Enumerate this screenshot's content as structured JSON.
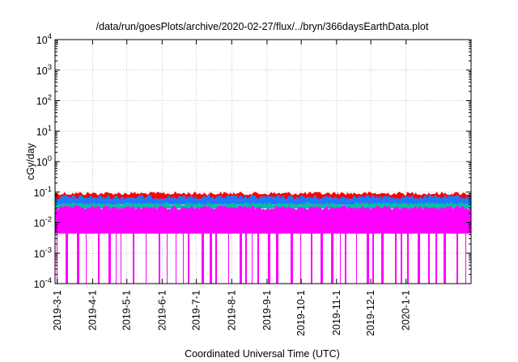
{
  "chart_data": {
    "type": "area",
    "title": "/data/run/goesPlots/archive/2020-02-27/flux/../bryn/366daysEarthData.plot",
    "xlabel": "Coordinated Universal Time (UTC)",
    "ylabel": "cGy/day",
    "yscale": "log",
    "ylim": [
      0.0001,
      10000
    ],
    "y_ticks": [
      {
        "value": 0.0001,
        "mantissa": "10",
        "exp": "-4"
      },
      {
        "value": 0.001,
        "mantissa": "10",
        "exp": "-3"
      },
      {
        "value": 0.01,
        "mantissa": "10",
        "exp": "-2"
      },
      {
        "value": 0.1,
        "mantissa": "10",
        "exp": "-1"
      },
      {
        "value": 1,
        "mantissa": "10",
        "exp": "0"
      },
      {
        "value": 10,
        "mantissa": "10",
        "exp": "1"
      },
      {
        "value": 100,
        "mantissa": "10",
        "exp": "2"
      },
      {
        "value": 1000,
        "mantissa": "10",
        "exp": "3"
      },
      {
        "value": 10000,
        "mantissa": "10",
        "exp": "4"
      }
    ],
    "xlim": [
      "2019-02-27",
      "2020-02-27"
    ],
    "x_ticks": [
      "2019-3-1",
      "2019-4-1",
      "2019-5-1",
      "2019-6-1",
      "2019-7-1",
      "2019-8-1",
      "2019-9-1",
      "2019-10-1",
      "2019-11-1",
      "2019-12-1",
      "2020-1-1"
    ],
    "grid": true,
    "series": [
      {
        "color": "#ff0000",
        "min": 0.06,
        "max": 0.1
      },
      {
        "color": "#1f78ff",
        "min": 0.04,
        "max": 0.08
      },
      {
        "color": "#00c0a0",
        "min": 0.03,
        "max": 0.045
      },
      {
        "color": "#ff00ff",
        "floor": 0.0045,
        "min": 0.02,
        "max": 0.035,
        "dropout_to": 0.0001
      }
    ]
  }
}
